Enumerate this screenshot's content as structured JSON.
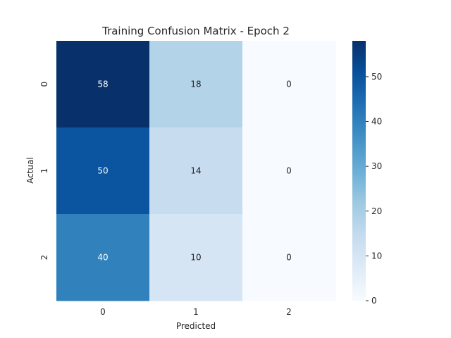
{
  "chart_data": {
    "type": "heatmap",
    "title": "Training Confusion Matrix - Epoch 2",
    "xlabel": "Predicted",
    "ylabel": "Actual",
    "x_categories": [
      "0",
      "1",
      "2"
    ],
    "y_categories": [
      "0",
      "1",
      "2"
    ],
    "values": [
      [
        58,
        18,
        0
      ],
      [
        50,
        14,
        0
      ],
      [
        40,
        10,
        0
      ]
    ],
    "colormap": "Blues",
    "annotated": true,
    "colorbar": {
      "range": [
        0,
        58
      ],
      "ticks": [
        0,
        10,
        20,
        30,
        40,
        50
      ]
    }
  }
}
